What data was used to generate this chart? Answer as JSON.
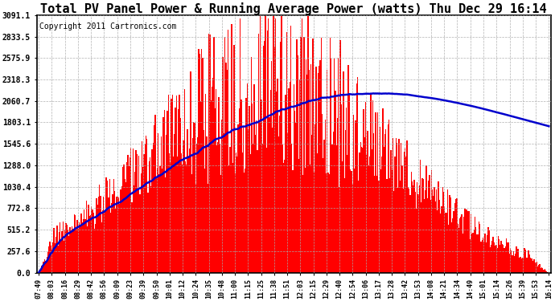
{
  "title": "Total PV Panel Power & Running Average Power (watts) Thu Dec 29 16:14",
  "copyright": "Copyright 2011 Cartronics.com",
  "yticks": [
    0.0,
    257.6,
    515.2,
    772.8,
    1030.4,
    1288.0,
    1545.6,
    1803.1,
    2060.7,
    2318.3,
    2575.9,
    2833.5,
    3091.1
  ],
  "ymax": 3091.1,
  "bar_color": "#ff0000",
  "line_color": "#0000cc",
  "bg_color": "#ffffff",
  "grid_color": "#aaaaaa",
  "title_fontsize": 11,
  "copyright_fontsize": 7,
  "xtick_labels": [
    "07:49",
    "08:03",
    "08:16",
    "08:29",
    "08:42",
    "08:56",
    "09:09",
    "09:23",
    "09:39",
    "09:50",
    "10:01",
    "10:12",
    "10:24",
    "10:35",
    "10:48",
    "11:00",
    "11:15",
    "11:25",
    "11:38",
    "11:51",
    "12:03",
    "12:15",
    "12:29",
    "12:40",
    "12:54",
    "13:06",
    "13:17",
    "13:28",
    "13:42",
    "13:53",
    "14:08",
    "14:21",
    "14:34",
    "14:49",
    "15:01",
    "15:14",
    "15:26",
    "15:39",
    "15:53",
    "16:14"
  ]
}
